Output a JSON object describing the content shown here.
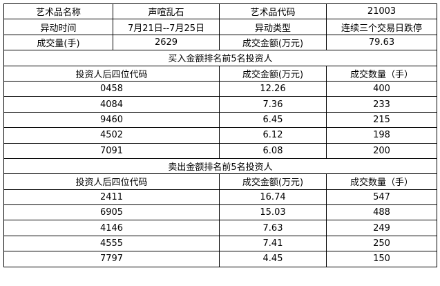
{
  "info": {
    "r1": [
      "艺术品名称",
      "声喧乱石",
      "艺术品代码",
      "21003"
    ],
    "r2": [
      "异动时间",
      "7月21日--7月25日",
      "异动类型",
      "连续三个交易日跌停"
    ],
    "r3": [
      "成交量(手)",
      "2629",
      "成交金额(万元)",
      "79.63"
    ]
  },
  "buy": {
    "title": "买入金额排名前5名投资人",
    "headers": [
      "投资人后四位代码",
      "成交金额(万元)",
      "成交数量（手）"
    ],
    "rows": [
      [
        "0458",
        "12.26",
        "400"
      ],
      [
        "4084",
        "7.36",
        "233"
      ],
      [
        "9460",
        "6.45",
        "215"
      ],
      [
        "4502",
        "6.12",
        "198"
      ],
      [
        "7091",
        "6.08",
        "200"
      ]
    ]
  },
  "sell": {
    "title": "卖出金额排名前5名投资人",
    "headers": [
      "投资人后四位代码",
      "成交金额(万元)",
      "成交数量（手）"
    ],
    "rows": [
      [
        "2411",
        "16.74",
        "547"
      ],
      [
        "6905",
        "15.03",
        "488"
      ],
      [
        "4146",
        "7.63",
        "249"
      ],
      [
        "4555",
        "7.41",
        "250"
      ],
      [
        "7797",
        "4.45",
        "150"
      ]
    ]
  }
}
